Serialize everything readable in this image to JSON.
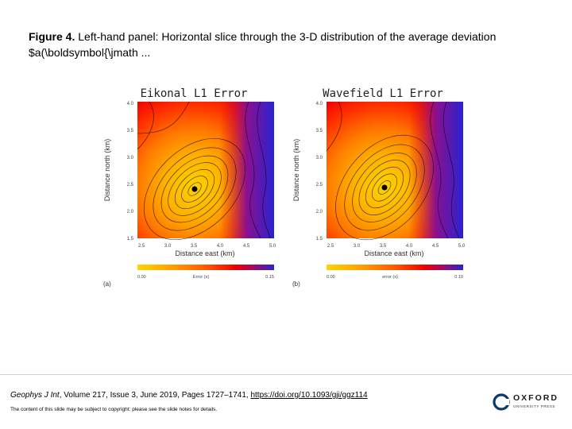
{
  "caption": {
    "label": "Figure 4.",
    "text": "Left-hand panel: Horizontal slice through the 3-D distribution of the average deviation $a(\\boldsymbol{\\jmath ..."
  },
  "panels": [
    {
      "title": "Eikonal L1 Error",
      "ylabel": "Distance north (km)",
      "xlabel": "Distance east (km)",
      "yticks": [
        "4.0",
        "3.5",
        "3.0",
        "2.5",
        "2.0",
        "1.5"
      ],
      "xticks": [
        "2.5",
        "3.0",
        "3.5",
        "4.0",
        "4.5",
        "5.0"
      ],
      "colorbar_min": "0.00",
      "colorbar_label": "Error (s)",
      "colorbar_max": "0.15",
      "panel_label": "(a)"
    },
    {
      "title": "Wavefield L1 Error",
      "ylabel": "Distance north (km)",
      "xlabel": "Distance east (km)",
      "yticks": [
        "4.0",
        "3.5",
        "3.0",
        "2.5",
        "2.0",
        "1.5"
      ],
      "xticks": [
        "2.5",
        "3.0",
        "3.5",
        "4.0",
        "4.5",
        "5.0"
      ],
      "colorbar_min": "0.00",
      "colorbar_label": "error (s)",
      "colorbar_max": "0.19",
      "panel_label": "(b)"
    }
  ],
  "citation": {
    "journal": "Geophys J Int",
    "details": ", Volume 217, Issue 3, June 2019, Pages 1727–1741, ",
    "doi": "https://doi.org/10.1093/gji/ggz114"
  },
  "note": "The content of this slide may be subject to copyright: please see the slide notes for details.",
  "logo": {
    "name": "OXFORD",
    "sub": "UNIVERSITY PRESS",
    "icon": "oxford-logo-icon"
  },
  "colors": {
    "colormap": [
      "#ffd400",
      "#ffb000",
      "#ff8a00",
      "#ff5a00",
      "#ff2a00",
      "#ee0000",
      "#7a1aa0",
      "#2a22d0"
    ]
  }
}
